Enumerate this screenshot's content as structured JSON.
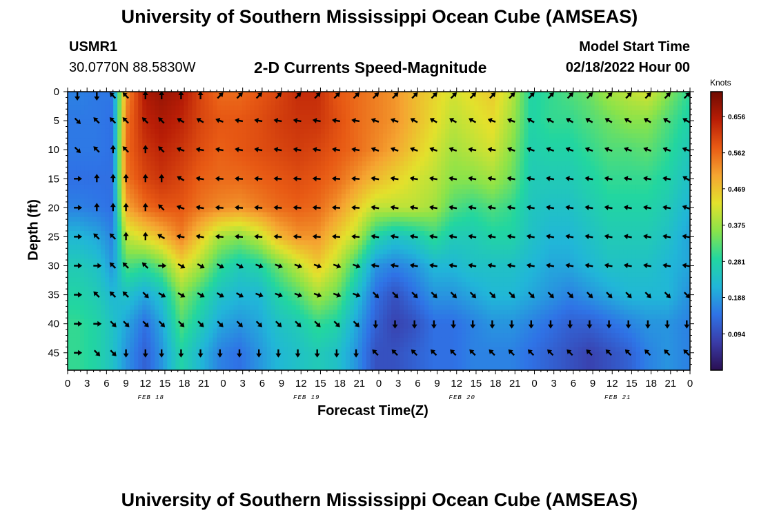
{
  "header": {
    "title": "University of Southern Mississippi Ocean Cube (AMSEAS)",
    "station": "USMR1",
    "coords": "30.0770N  88.5830W",
    "subtitle": "2-D Currents Speed-Magnitude",
    "model_start_label": "Model Start Time",
    "model_start_value": "02/18/2022 Hour 00"
  },
  "footer": {
    "title": "University of Southern Mississippi Ocean Cube (AMSEAS)"
  },
  "chart_data": {
    "type": "heatmap",
    "title": "2-D Currents Speed-Magnitude",
    "xlabel": "Forecast Time(Z)",
    "ylabel": "Depth (ft)",
    "x_tick_labels": [
      "0",
      "3",
      "6",
      "9",
      "12",
      "15",
      "18",
      "21",
      "0",
      "3",
      "6",
      "9",
      "12",
      "15",
      "18",
      "21",
      "0",
      "3",
      "6",
      "9",
      "12",
      "15",
      "18",
      "21",
      "0",
      "3",
      "6",
      "9",
      "12",
      "15",
      "18",
      "21",
      "0"
    ],
    "x_range_hours": [
      0,
      96
    ],
    "date_labels": [
      {
        "text": "FEB 18",
        "hour": 12
      },
      {
        "text": "FEB 19",
        "hour": 36
      },
      {
        "text": "FEB 20",
        "hour": 60
      },
      {
        "text": "FEB 21",
        "hour": 84
      }
    ],
    "y_ticks": [
      0,
      5,
      10,
      15,
      20,
      25,
      30,
      35,
      40,
      45
    ],
    "y_range_ft": [
      0,
      48
    ],
    "y_inverted": true,
    "colorbar": {
      "title": "Knots",
      "ticks": [
        "0.656",
        "0.562",
        "0.469",
        "0.375",
        "0.281",
        "0.188",
        "0.094"
      ],
      "tick_values": [
        0.656,
        0.562,
        0.469,
        0.375,
        0.281,
        0.188,
        0.094
      ],
      "range": [
        0.0,
        0.72
      ],
      "colors": [
        "#2a0f52",
        "#3a3ca8",
        "#2f73e6",
        "#21b6d8",
        "#22d6a0",
        "#8ae34a",
        "#e3e12c",
        "#f5a531",
        "#e85a14",
        "#b81d06",
        "#6f0b02"
      ]
    },
    "arrow_hours": [
      1.5,
      4.5,
      7,
      9,
      12,
      14.5,
      17.5,
      20.5,
      23.5,
      26.5,
      29.5,
      32.5,
      35.5,
      38.5,
      41.5,
      44.5,
      47.5,
      50.5,
      53.5,
      56.5,
      59.5,
      62.5,
      65.5,
      68.5,
      71.5,
      74.5,
      77.5,
      80.5,
      83.5,
      86.5,
      89.5,
      92.5,
      95.5
    ],
    "arrow_depths": [
      0,
      5,
      10,
      15,
      20,
      25,
      30,
      35,
      40,
      45
    ],
    "speed_grid": [
      [
        0.16,
        0.15,
        0.15,
        0.52,
        0.66,
        0.68,
        0.66,
        0.6,
        0.56,
        0.56,
        0.58,
        0.6,
        0.63,
        0.63,
        0.58,
        0.56,
        0.54,
        0.52,
        0.48,
        0.45,
        0.42,
        0.44,
        0.46,
        0.4,
        0.28,
        0.3,
        0.32,
        0.34,
        0.38,
        0.4,
        0.42,
        0.36,
        0.3
      ],
      [
        0.15,
        0.15,
        0.14,
        0.55,
        0.64,
        0.66,
        0.64,
        0.6,
        0.58,
        0.58,
        0.59,
        0.61,
        0.62,
        0.62,
        0.59,
        0.56,
        0.54,
        0.52,
        0.48,
        0.44,
        0.4,
        0.42,
        0.44,
        0.38,
        0.28,
        0.3,
        0.3,
        0.32,
        0.34,
        0.36,
        0.36,
        0.32,
        0.28
      ],
      [
        0.15,
        0.15,
        0.14,
        0.56,
        0.62,
        0.64,
        0.62,
        0.59,
        0.57,
        0.58,
        0.59,
        0.6,
        0.61,
        0.6,
        0.58,
        0.56,
        0.53,
        0.5,
        0.46,
        0.42,
        0.38,
        0.4,
        0.42,
        0.36,
        0.27,
        0.28,
        0.28,
        0.3,
        0.32,
        0.32,
        0.33,
        0.3,
        0.26
      ],
      [
        0.14,
        0.14,
        0.14,
        0.55,
        0.6,
        0.62,
        0.6,
        0.57,
        0.56,
        0.56,
        0.57,
        0.58,
        0.59,
        0.58,
        0.56,
        0.52,
        0.48,
        0.45,
        0.42,
        0.4,
        0.36,
        0.36,
        0.38,
        0.34,
        0.26,
        0.26,
        0.26,
        0.28,
        0.3,
        0.3,
        0.3,
        0.28,
        0.24
      ],
      [
        0.16,
        0.15,
        0.14,
        0.5,
        0.56,
        0.58,
        0.58,
        0.55,
        0.53,
        0.52,
        0.54,
        0.56,
        0.57,
        0.56,
        0.52,
        0.46,
        0.4,
        0.4,
        0.4,
        0.38,
        0.32,
        0.3,
        0.32,
        0.3,
        0.25,
        0.24,
        0.24,
        0.26,
        0.28,
        0.28,
        0.28,
        0.26,
        0.22
      ],
      [
        0.22,
        0.2,
        0.16,
        0.4,
        0.44,
        0.48,
        0.54,
        0.46,
        0.38,
        0.36,
        0.4,
        0.48,
        0.52,
        0.52,
        0.46,
        0.4,
        0.28,
        0.24,
        0.26,
        0.3,
        0.26,
        0.26,
        0.28,
        0.28,
        0.24,
        0.22,
        0.22,
        0.24,
        0.26,
        0.26,
        0.26,
        0.24,
        0.2
      ],
      [
        0.26,
        0.24,
        0.18,
        0.32,
        0.3,
        0.34,
        0.44,
        0.38,
        0.3,
        0.26,
        0.28,
        0.34,
        0.4,
        0.46,
        0.4,
        0.3,
        0.18,
        0.16,
        0.18,
        0.22,
        0.22,
        0.24,
        0.24,
        0.24,
        0.22,
        0.2,
        0.2,
        0.22,
        0.24,
        0.24,
        0.24,
        0.22,
        0.2
      ],
      [
        0.28,
        0.26,
        0.22,
        0.24,
        0.2,
        0.24,
        0.36,
        0.3,
        0.24,
        0.22,
        0.22,
        0.28,
        0.32,
        0.38,
        0.34,
        0.24,
        0.14,
        0.1,
        0.14,
        0.18,
        0.18,
        0.2,
        0.22,
        0.22,
        0.2,
        0.18,
        0.16,
        0.18,
        0.2,
        0.22,
        0.22,
        0.22,
        0.18
      ],
      [
        0.3,
        0.28,
        0.24,
        0.2,
        0.14,
        0.2,
        0.32,
        0.26,
        0.2,
        0.18,
        0.2,
        0.24,
        0.26,
        0.3,
        0.28,
        0.2,
        0.12,
        0.08,
        0.1,
        0.14,
        0.14,
        0.16,
        0.18,
        0.18,
        0.16,
        0.14,
        0.12,
        0.12,
        0.14,
        0.16,
        0.18,
        0.18,
        0.16
      ],
      [
        0.3,
        0.28,
        0.24,
        0.18,
        0.12,
        0.18,
        0.28,
        0.22,
        0.16,
        0.14,
        0.18,
        0.22,
        0.24,
        0.26,
        0.24,
        0.18,
        0.1,
        0.1,
        0.12,
        0.14,
        0.14,
        0.16,
        0.16,
        0.16,
        0.14,
        0.12,
        0.1,
        0.08,
        0.1,
        0.12,
        0.16,
        0.18,
        0.16
      ]
    ],
    "direction_grid_deg": [
      [
        0,
        0,
        135,
        135,
        180,
        180,
        180,
        180,
        225,
        225,
        225,
        225,
        225,
        225,
        225,
        225,
        225,
        225,
        225,
        225,
        225,
        225,
        225,
        225,
        225,
        225,
        225,
        225,
        225,
        225,
        225,
        225,
        225
      ],
      [
        315,
        135,
        135,
        135,
        135,
        135,
        120,
        120,
        110,
        100,
        100,
        100,
        100,
        100,
        100,
        100,
        110,
        110,
        120,
        120,
        120,
        120,
        110,
        110,
        120,
        120,
        120,
        120,
        120,
        120,
        120,
        120,
        120
      ],
      [
        315,
        135,
        180,
        135,
        180,
        135,
        110,
        100,
        100,
        100,
        100,
        100,
        100,
        100,
        100,
        100,
        110,
        110,
        110,
        110,
        110,
        100,
        100,
        110,
        110,
        110,
        110,
        110,
        110,
        110,
        110,
        110,
        110
      ],
      [
        270,
        180,
        180,
        180,
        180,
        180,
        120,
        100,
        95,
        95,
        95,
        95,
        95,
        95,
        95,
        95,
        100,
        100,
        100,
        100,
        100,
        100,
        100,
        100,
        100,
        100,
        100,
        100,
        100,
        100,
        100,
        100,
        120
      ],
      [
        270,
        180,
        180,
        180,
        180,
        135,
        110,
        100,
        95,
        95,
        95,
        95,
        95,
        95,
        95,
        95,
        100,
        100,
        100,
        100,
        100,
        100,
        100,
        100,
        100,
        100,
        100,
        100,
        100,
        100,
        100,
        100,
        110
      ],
      [
        270,
        135,
        135,
        180,
        180,
        120,
        100,
        100,
        95,
        95,
        95,
        95,
        95,
        95,
        95,
        95,
        100,
        100,
        100,
        100,
        100,
        100,
        100,
        100,
        100,
        100,
        100,
        100,
        100,
        100,
        100,
        100,
        100
      ],
      [
        270,
        270,
        135,
        135,
        135,
        270,
        300,
        300,
        300,
        300,
        290,
        290,
        290,
        290,
        290,
        290,
        100,
        100,
        100,
        100,
        100,
        100,
        100,
        100,
        100,
        100,
        100,
        100,
        100,
        100,
        100,
        100,
        100
      ],
      [
        270,
        135,
        135,
        135,
        315,
        300,
        300,
        300,
        300,
        300,
        290,
        290,
        290,
        290,
        290,
        290,
        315,
        315,
        315,
        315,
        315,
        315,
        315,
        315,
        315,
        315,
        315,
        315,
        315,
        315,
        315,
        315,
        315
      ],
      [
        270,
        270,
        315,
        315,
        315,
        315,
        315,
        315,
        315,
        315,
        315,
        315,
        315,
        315,
        315,
        315,
        0,
        0,
        0,
        0,
        0,
        0,
        0,
        0,
        0,
        0,
        0,
        0,
        0,
        0,
        0,
        0,
        0
      ],
      [
        270,
        315,
        315,
        0,
        0,
        0,
        0,
        0,
        0,
        0,
        0,
        0,
        0,
        0,
        0,
        0,
        135,
        135,
        135,
        135,
        135,
        135,
        135,
        135,
        135,
        135,
        135,
        135,
        135,
        135,
        135,
        135,
        135
      ]
    ]
  }
}
